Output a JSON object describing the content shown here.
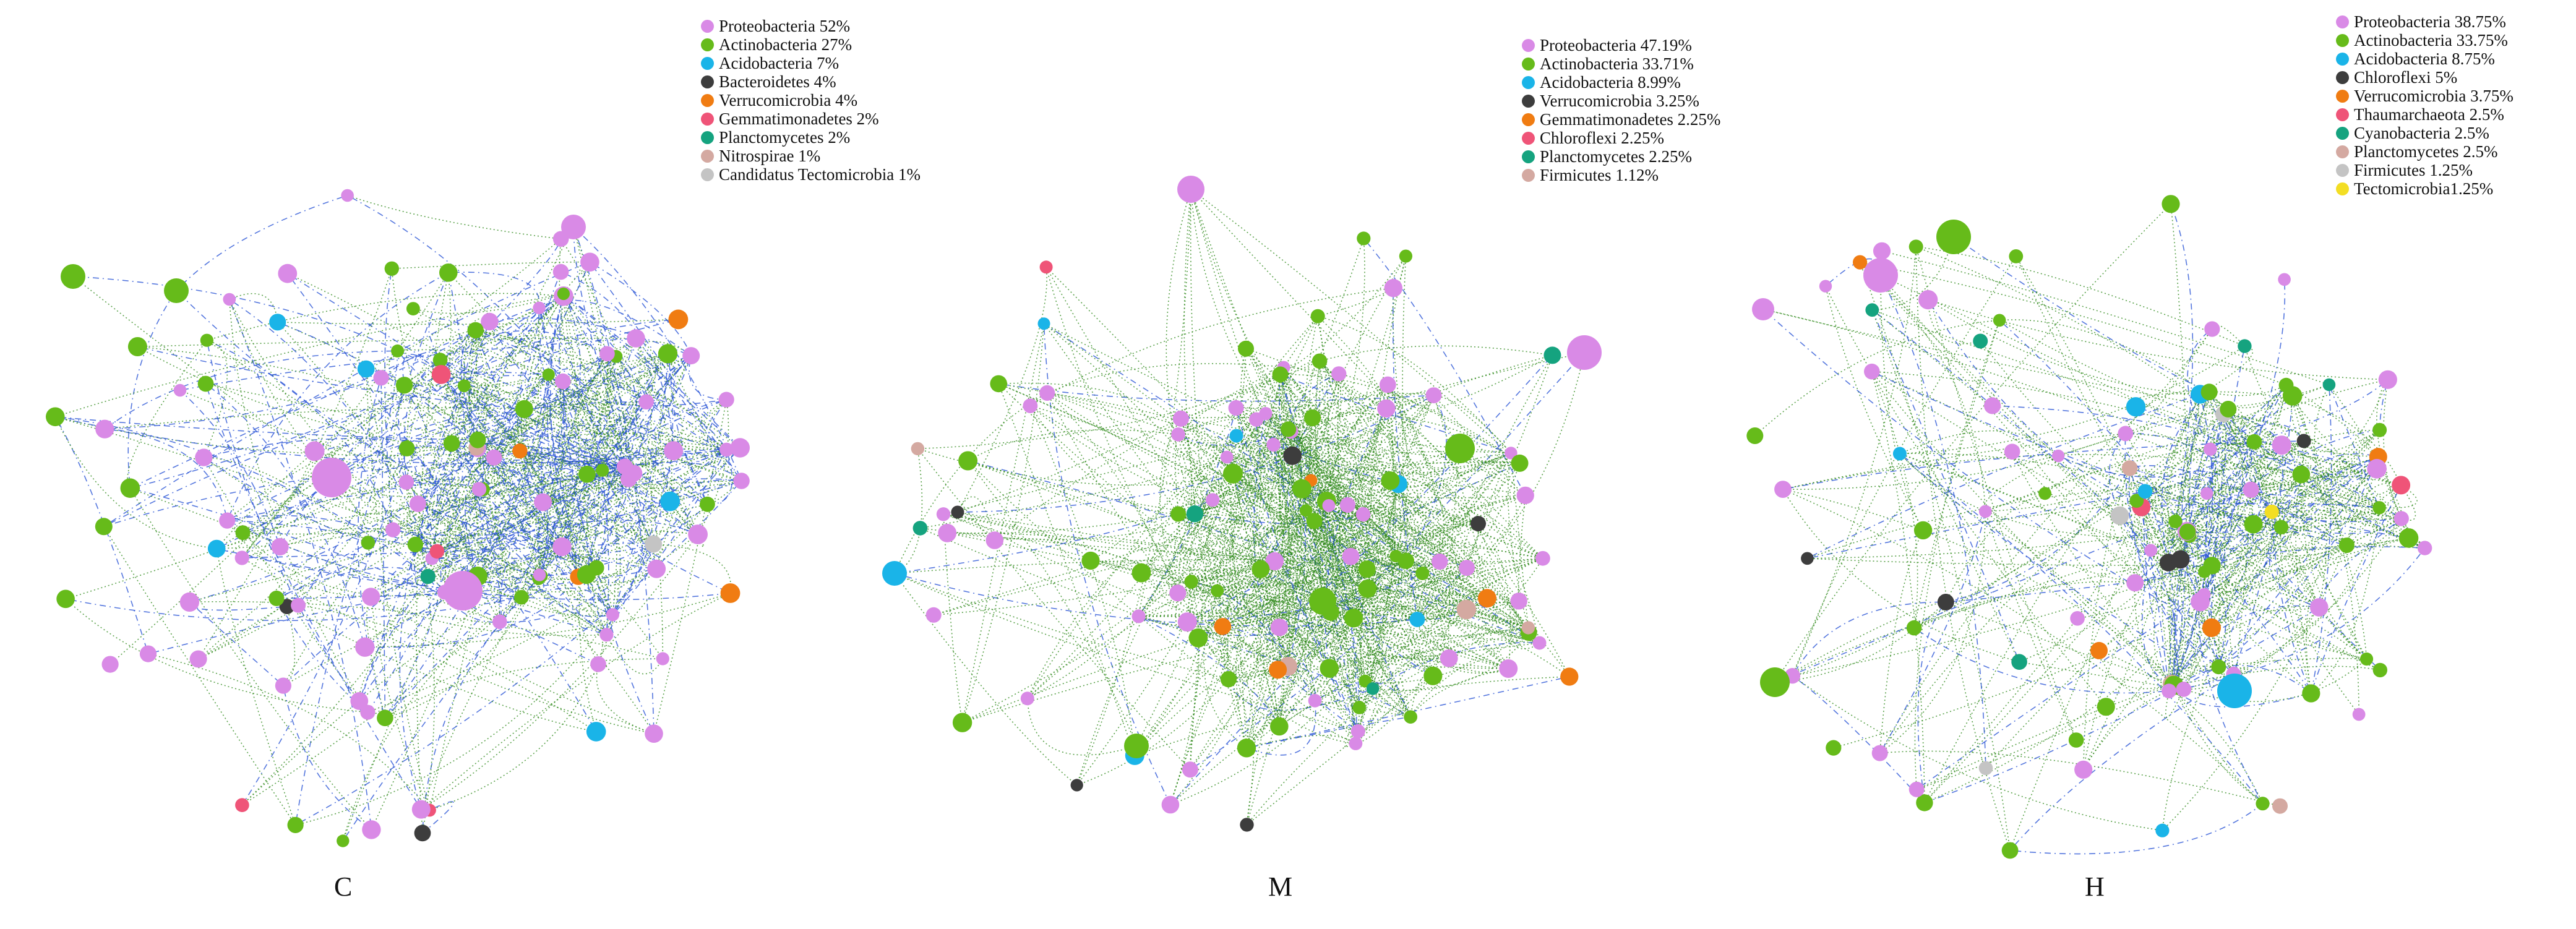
{
  "colors": {
    "proteobacteria": "#d98ae6",
    "actinobacteria": "#66bb1a",
    "acidobacteria": "#1ab4e8",
    "dark": "#3d3d3d",
    "verrucomicrobia": "#f07c12",
    "gemmatimonadetes": "#ef5478",
    "planctomycetes": "#15a37f",
    "nitrospirae": "#d4a9a1",
    "grey": "#c4c4c4",
    "yellow": "#f3de24",
    "edge_positive": "#2f8a1c",
    "edge_negative": "#2a55d6"
  },
  "panels": [
    {
      "label": "C",
      "legend": [
        {
          "text": "Proteobacteria 52%",
          "color_key": "proteobacteria"
        },
        {
          "text": "Actinobacteria 27%",
          "color_key": "actinobacteria"
        },
        {
          "text": "Acidobacteria 7%",
          "color_key": "acidobacteria"
        },
        {
          "text": "Bacteroidetes 4%",
          "color_key": "dark"
        },
        {
          "text": "Verrucomicrobia 4%",
          "color_key": "verrucomicrobia"
        },
        {
          "text": "Gemmatimonadetes 2%",
          "color_key": "gemmatimonadetes"
        },
        {
          "text": "Planctomycetes 2%",
          "color_key": "planctomycetes"
        },
        {
          "text": "Nitrospirae 1%",
          "color_key": "nitrospirae"
        },
        {
          "text": "Candidatus Tectomicrobia 1%",
          "color_key": "grey"
        }
      ]
    },
    {
      "label": "M",
      "legend": [
        {
          "text": "Proteobacteria 47.19%",
          "color_key": "proteobacteria"
        },
        {
          "text": "Actinobacteria 33.71%",
          "color_key": "actinobacteria"
        },
        {
          "text": "Acidobacteria 8.99%",
          "color_key": "acidobacteria"
        },
        {
          "text": "Verrucomicrobia 3.25%",
          "color_key": "dark"
        },
        {
          "text": "Gemmatimonadetes 2.25%",
          "color_key": "verrucomicrobia"
        },
        {
          "text": "Chloroflexi 2.25%",
          "color_key": "gemmatimonadetes"
        },
        {
          "text": "Planctomycetes 2.25%",
          "color_key": "planctomycetes"
        },
        {
          "text": "Firmicutes 1.12%",
          "color_key": "nitrospirae"
        }
      ]
    },
    {
      "label": "H",
      "legend": [
        {
          "text": "Proteobacteria 38.75%",
          "color_key": "proteobacteria"
        },
        {
          "text": "Actinobacteria 33.75%",
          "color_key": "actinobacteria"
        },
        {
          "text": "Acidobacteria 8.75%",
          "color_key": "acidobacteria"
        },
        {
          "text": "Chloroflexi 5%",
          "color_key": "dark"
        },
        {
          "text": "Verrucomicrobia 3.75%",
          "color_key": "verrucomicrobia"
        },
        {
          "text": "Thaumarchaeota 2.5%",
          "color_key": "gemmatimonadetes"
        },
        {
          "text": "Cyanobacteria 2.5%",
          "color_key": "planctomycetes"
        },
        {
          "text": "Planctomycetes 2.5%",
          "color_key": "nitrospirae"
        },
        {
          "text": "Firmicutes 1.25%",
          "color_key": "grey"
        },
        {
          "text": "Tectomicrobia1.25%",
          "color_key": "yellow"
        }
      ]
    }
  ]
}
